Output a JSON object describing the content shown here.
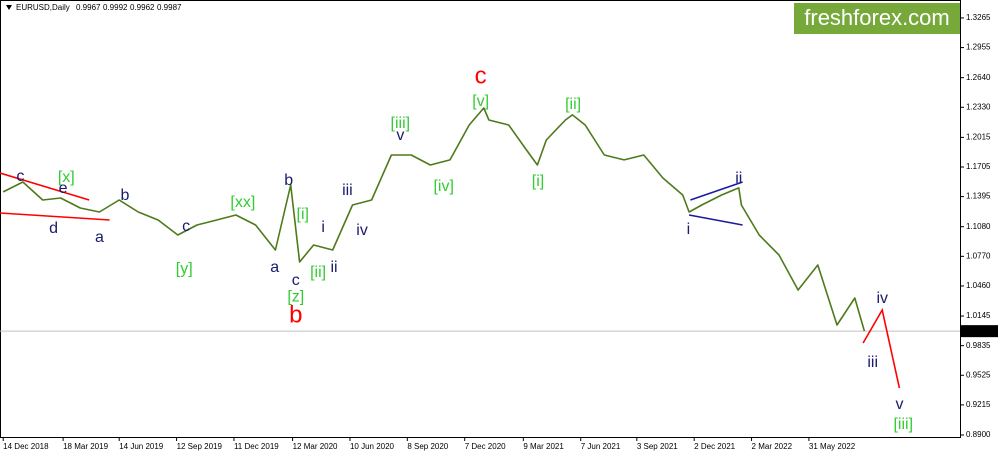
{
  "header": {
    "symbol": "EURUSD,Daily",
    "open": 0.9967,
    "high": 0.9992,
    "low": 0.9962,
    "close": 0.9987
  },
  "watermark": "freshforex.com",
  "chart_data": {
    "type": "line",
    "x": [
      "2018-12-14",
      "2019-01-14",
      "2019-02-14",
      "2019-03-14",
      "2019-04-14",
      "2019-05-14",
      "2019-06-14",
      "2019-07-14",
      "2019-08-14",
      "2019-09-14",
      "2019-10-14",
      "2019-11-14",
      "2019-12-14",
      "2020-01-14",
      "2020-02-14",
      "2020-03-09",
      "2020-03-23",
      "2020-04-14",
      "2020-05-14",
      "2020-06-14",
      "2020-07-14",
      "2020-08-14",
      "2020-09-14",
      "2020-10-14",
      "2020-11-14",
      "2020-12-14",
      "2021-01-06",
      "2021-01-14",
      "2021-02-14",
      "2021-03-14",
      "2021-03-31",
      "2021-04-14",
      "2021-05-14",
      "2021-05-25",
      "2021-06-14",
      "2021-07-14",
      "2021-08-14",
      "2021-09-14",
      "2021-10-14",
      "2021-11-14",
      "2021-11-24",
      "2021-12-14",
      "2022-01-14",
      "2022-02-10",
      "2022-02-14",
      "2022-03-14",
      "2022-04-14",
      "2022-05-14",
      "2022-06-14",
      "2022-07-14",
      "2022-08-11",
      "2022-08-26"
    ],
    "values": [
      1.1444,
      1.1548,
      1.136,
      1.1381,
      1.1276,
      1.1234,
      1.136,
      1.1234,
      1.115,
      1.0993,
      1.1098,
      1.115,
      1.1203,
      1.1098,
      1.0836,
      1.1517,
      1.0711,
      1.0889,
      1.0836,
      1.1307,
      1.136,
      1.1831,
      1.1831,
      1.1726,
      1.1779,
      1.2145,
      1.2323,
      1.2197,
      1.2145,
      1.1883,
      1.1726,
      1.1988,
      1.2197,
      1.225,
      1.2145,
      1.1831,
      1.1779,
      1.1831,
      1.159,
      1.1412,
      1.1234,
      1.1307,
      1.1412,
      1.1486,
      1.1307,
      1.0993,
      1.0784,
      1.0418,
      1.0679,
      1.0051,
      1.0334,
      0.9987
    ],
    "color": "#4f7a1c",
    "xlim": [
      "2018-12-09",
      "2023-01-23"
    ],
    "xticks": [
      {
        "value": "2018-12-14",
        "label": "14 Dec 2018"
      },
      {
        "value": "2019-03-18",
        "label": "18 Mar 2019"
      },
      {
        "value": "2019-06-14",
        "label": "14 Jun 2019"
      },
      {
        "value": "2019-09-12",
        "label": "12 Sep 2019"
      },
      {
        "value": "2019-12-11",
        "label": "11 Dec 2019"
      },
      {
        "value": "2020-03-12",
        "label": "12 Mar 2020"
      },
      {
        "value": "2020-06-10",
        "label": "10 Jun 2020"
      },
      {
        "value": "2020-09-08",
        "label": "8 Sep 2020"
      },
      {
        "value": "2020-12-07",
        "label": "7 Dec 2020"
      },
      {
        "value": "2021-03-09",
        "label": "9 Mar 2021"
      },
      {
        "value": "2021-06-07",
        "label": "7 Jun 2021"
      },
      {
        "value": "2021-09-03",
        "label": "3 Sep 2021"
      },
      {
        "value": "2021-12-02",
        "label": "2 Dec 2021"
      },
      {
        "value": "2022-03-02",
        "label": "2 Mar 2022"
      },
      {
        "value": "2022-05-31",
        "label": "31 May 2022"
      }
    ],
    "ylim": [
      0.8879,
      1.3453
    ],
    "yticks": [
      1.3265,
      1.2955,
      {
        "value": 1.264,
        "label": "1.2640"
      },
      {
        "value": 1.233,
        "label": "1.2330"
      },
      1.2015,
      1.1705,
      1.1395,
      {
        "value": 1.108,
        "label": "1.1080"
      },
      {
        "value": 1.077,
        "label": "1.0770"
      },
      {
        "value": 1.046,
        "label": "1.0460"
      },
      1.0145,
      0.9835,
      0.9525,
      0.9215,
      {
        "value": 0.89,
        "label": "0.8900"
      }
    ],
    "annotations": [
      {
        "text": "c",
        "color": "#1a1a6e",
        "x": "2019-01-10",
        "y": 1.1601
      },
      {
        "text": "[x]",
        "color": "#33cc33",
        "x": "2019-03-23",
        "y": 1.159
      },
      {
        "text": "e",
        "color": "#1a1a6e",
        "x": "2019-03-18",
        "y": 1.1475
      },
      {
        "text": "d",
        "color": "#1a1a6e",
        "x": "2019-03-03",
        "y": 1.1056
      },
      {
        "text": "a",
        "color": "#1a1a6e",
        "x": "2019-05-14",
        "y": 1.0962
      },
      {
        "text": "b",
        "color": "#1a1a6e",
        "x": "2019-06-23",
        "y": 1.1402
      },
      {
        "text": "[xx]",
        "color": "#33cc33",
        "x": "2019-12-25",
        "y": 1.1329
      },
      {
        "text": "c",
        "color": "#1a1a6e",
        "x": "2019-09-27",
        "y": 1.1077
      },
      {
        "text": "[y]",
        "color": "#33cc33",
        "x": "2019-09-24",
        "y": 1.0637
      },
      {
        "text": "b",
        "color": "#1a1a6e",
        "x": "2020-03-06",
        "y": 1.1559
      },
      {
        "text": "a",
        "color": "#1a1a6e",
        "x": "2020-02-13",
        "y": 1.0648
      },
      {
        "text": "c",
        "color": "#1a1a6e",
        "x": "2020-03-17",
        "y": 1.0512
      },
      {
        "text": "[z]",
        "color": "#33cc33",
        "x": "2020-03-17",
        "y": 1.0344
      },
      {
        "text": "b",
        "color": "#ff0000",
        "x": "2020-03-17",
        "y": 1.0146
      },
      {
        "text": "[i]",
        "color": "#33cc33",
        "x": "2020-03-28",
        "y": 1.1203
      },
      {
        "text": "i",
        "color": "#1a1a6e",
        "x": "2020-04-29",
        "y": 1.1067
      },
      {
        "text": "[ii]",
        "color": "#33cc33",
        "x": "2020-04-21",
        "y": 1.0596
      },
      {
        "text": "ii",
        "color": "#1a1a6e",
        "x": "2020-05-16",
        "y": 1.0648
      },
      {
        "text": "iii",
        "color": "#1a1a6e",
        "x": "2020-06-06",
        "y": 1.1454
      },
      {
        "text": "iv",
        "color": "#1a1a6e",
        "x": "2020-06-29",
        "y": 1.1035
      },
      {
        "text": "[iii]",
        "color": "#33cc33",
        "x": "2020-08-28",
        "y": 1.2155
      },
      {
        "text": "v",
        "color": "#1a1a6e",
        "x": "2020-08-28",
        "y": 1.203
      },
      {
        "text": "[iv]",
        "color": "#33cc33",
        "x": "2020-11-04",
        "y": 1.1496
      },
      {
        "text": "c",
        "color": "#ff0000",
        "x": "2021-01-01",
        "y": 1.2647
      },
      {
        "text": "[v]",
        "color": "#33cc33",
        "x": "2021-01-01",
        "y": 1.2386
      },
      {
        "text": "[i]",
        "color": "#33cc33",
        "x": "2021-04-01",
        "y": 1.1548
      },
      {
        "text": "[ii]",
        "color": "#33cc33",
        "x": "2021-05-26",
        "y": 1.2354
      },
      {
        "text": "i",
        "color": "#1a1a6e",
        "x": "2021-11-23",
        "y": 1.1046
      },
      {
        "text": "ii",
        "color": "#1a1a6e",
        "x": "2022-02-10",
        "y": 1.158
      },
      {
        "text": "iv",
        "color": "#1a1a6e",
        "x": "2022-09-23",
        "y": 1.0324
      },
      {
        "text": "iii",
        "color": "#1a1a6e",
        "x": "2022-09-08",
        "y": 0.9654
      },
      {
        "text": "v",
        "color": "#1a1a6e",
        "x": "2022-10-20",
        "y": 0.9214
      },
      {
        "text": "[iii]",
        "color": "#33cc33",
        "x": "2022-10-26",
        "y": 0.9005
      }
    ],
    "trend_lines": [
      {
        "color": "#ff0000",
        "x": [
          "2018-12-09",
          "2019-04-28"
        ],
        "y": [
          1.1642,
          1.136
        ]
      },
      {
        "color": "#ff0000",
        "x": [
          "2018-12-09",
          "2019-05-30"
        ],
        "y": [
          1.1224,
          1.115
        ]
      },
      {
        "color": "#1a1aa0",
        "x": [
          "2021-11-26",
          "2022-02-16"
        ],
        "y": [
          1.136,
          1.1548
        ]
      },
      {
        "color": "#1a1aa0",
        "x": [
          "2021-11-24",
          "2022-02-16"
        ],
        "y": [
          1.1203,
          1.1098
        ]
      },
      {
        "color": "#ff0000",
        "x": [
          "2022-08-24",
          "2022-09-23",
          "2022-10-20"
        ],
        "y": [
          0.9863,
          1.0208,
          0.9392
        ]
      }
    ]
  }
}
